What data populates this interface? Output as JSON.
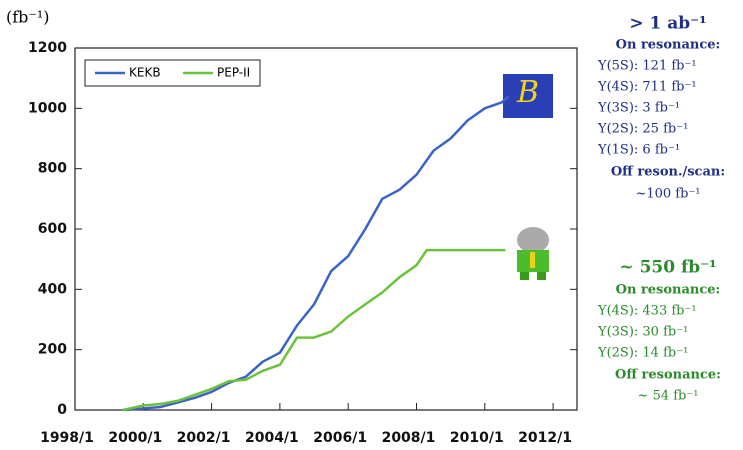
{
  "chart_data": {
    "type": "line",
    "y_label": "(fb⁻¹)",
    "xlim": [
      1998,
      2012.7
    ],
    "xticks": [
      {
        "value": 1998,
        "label": "1998/1"
      },
      {
        "value": 2000,
        "label": "2000/1"
      },
      {
        "value": 2002,
        "label": "2002/1"
      },
      {
        "value": 2004,
        "label": "2004/1"
      },
      {
        "value": 2006,
        "label": "2006/1"
      },
      {
        "value": 2008,
        "label": "2008/1"
      },
      {
        "value": 2010,
        "label": "2010/1"
      },
      {
        "value": 2012,
        "label": "2012/1"
      }
    ],
    "ylim": [
      0,
      1200
    ],
    "yticks": [
      0,
      200,
      400,
      600,
      800,
      1000,
      1200
    ],
    "grid": false,
    "legend": "upper left",
    "series": [
      {
        "name": "KEKB",
        "color": "#3b62c9",
        "x": [
          1999.4,
          2000.0,
          2000.5,
          2001.0,
          2001.5,
          2002.0,
          2002.5,
          2003.0,
          2003.5,
          2004.0,
          2004.5,
          2005.0,
          2005.5,
          2006.0,
          2006.5,
          2007.0,
          2007.5,
          2008.0,
          2008.5,
          2009.0,
          2009.5,
          2010.0,
          2010.5,
          2010.7
        ],
        "values": [
          0,
          5,
          10,
          25,
          40,
          60,
          90,
          110,
          160,
          190,
          280,
          350,
          460,
          510,
          600,
          700,
          730,
          780,
          860,
          900,
          960,
          1000,
          1020,
          1040
        ]
      },
      {
        "name": "PEP-II",
        "color": "#6cc23b",
        "x": [
          1999.4,
          2000.0,
          2000.5,
          2001.0,
          2001.5,
          2002.0,
          2002.5,
          2003.0,
          2003.5,
          2004.0,
          2004.5,
          2005.0,
          2005.5,
          2006.0,
          2006.5,
          2007.0,
          2007.5,
          2008.0,
          2008.3,
          2010.6
        ],
        "values": [
          0,
          15,
          20,
          30,
          50,
          70,
          95,
          100,
          130,
          150,
          240,
          240,
          260,
          310,
          350,
          390,
          440,
          480,
          530,
          530
        ]
      }
    ],
    "notes_kekb": [
      "> 1 ab⁻¹",
      "On resonance:",
      "Υ(5S): 121 fb⁻¹",
      "Υ(4S): 711 fb⁻¹",
      "Υ(3S): 3 fb⁻¹",
      "Υ(2S): 25 fb⁻¹",
      "Υ(1S): 6 fb⁻¹",
      "Off reson./scan:",
      "~100 fb⁻¹"
    ],
    "notes_pep": [
      "~ 550 fb⁻¹",
      "On resonance:",
      "Υ(4S): 433 fb⁻¹",
      "Υ(3S): 30 fb⁻¹",
      "Υ(2S): 14 fb⁻¹",
      "Off resonance:",
      "~ 54 fb⁻¹"
    ]
  }
}
